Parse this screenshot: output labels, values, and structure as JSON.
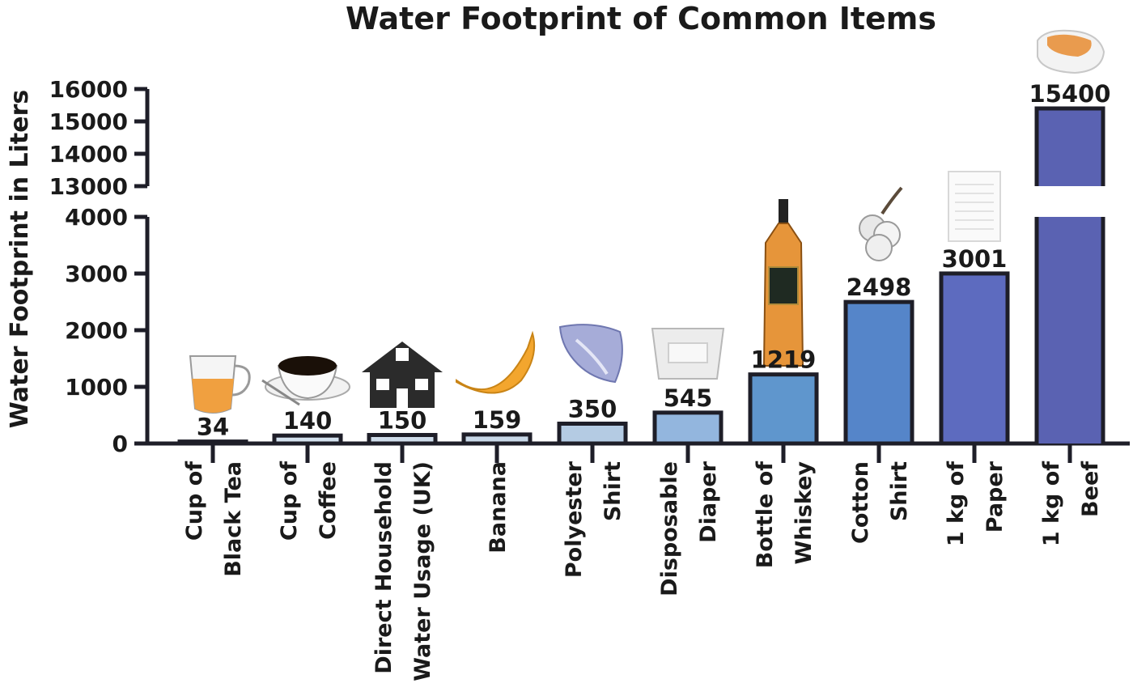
{
  "chart_data": {
    "type": "bar",
    "title": "Water Footprint of Common Items",
    "xlabel": "",
    "ylabel": "Water Footprint in Liters",
    "axis_break": {
      "lower_range": [
        0,
        4000
      ],
      "upper_range": [
        13000,
        16000
      ]
    },
    "yticks_lower": [
      "0",
      "1000",
      "2000",
      "3000",
      "4000"
    ],
    "yticks_upper": [
      "13000",
      "14000",
      "15000",
      "16000"
    ],
    "grid": false,
    "legend": "none",
    "categories": [
      {
        "line1": "Cup of",
        "line2": "Black Tea",
        "icon": "tea-cup-icon"
      },
      {
        "line1": "Cup of",
        "line2": "Coffee",
        "icon": "coffee-cup-icon"
      },
      {
        "line1": "Direct Household",
        "line2": "Water Usage (UK)",
        "icon": "house-icon"
      },
      {
        "line1": "Banana",
        "line2": "",
        "icon": "banana-icon"
      },
      {
        "line1": "Polyester",
        "line2": "Shirt",
        "icon": "polyester-fabric-icon"
      },
      {
        "line1": "Disposable",
        "line2": "Diaper",
        "icon": "diaper-icon"
      },
      {
        "line1": "Bottle of",
        "line2": "Whiskey",
        "icon": "whiskey-bottle-icon"
      },
      {
        "line1": "Cotton",
        "line2": "Shirt",
        "icon": "cotton-boll-icon"
      },
      {
        "line1": "1 kg of",
        "line2": "Paper",
        "icon": "paper-stack-icon"
      },
      {
        "line1": "1 kg of",
        "line2": "Beef",
        "icon": "beef-icon"
      }
    ],
    "values": [
      34,
      140,
      150,
      159,
      350,
      545,
      1219,
      2498,
      3001,
      15400
    ],
    "value_labels": [
      "34",
      "140",
      "150",
      "159",
      "350",
      "545",
      "1219",
      "2498",
      "3001",
      "15400"
    ],
    "bar_colors": [
      "#dbe6f0",
      "#d3e1ee",
      "#cedcea",
      "#c8d8e8",
      "#b4cbe3",
      "#93b6de",
      "#5f96cd",
      "#5585c9",
      "#5d6bbf",
      "#5a62b2"
    ],
    "bar_edge_color": "#1e1e28"
  }
}
